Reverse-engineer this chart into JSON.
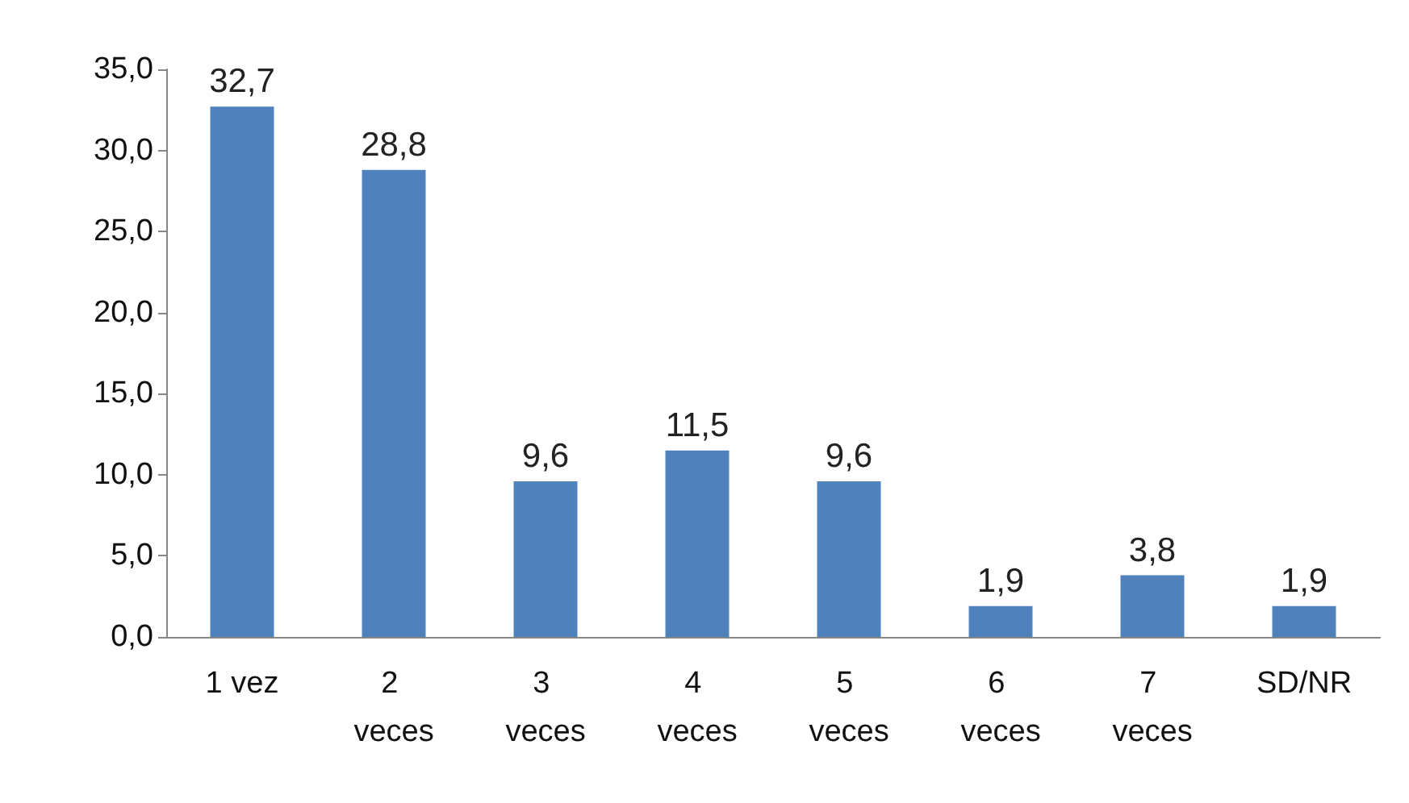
{
  "chart_data": {
    "type": "bar",
    "categories": [
      "1 vez",
      "2 veces",
      "3 veces",
      "4 veces",
      "5 veces",
      "6 veces",
      "7 veces",
      "SD/NR"
    ],
    "values": [
      32.7,
      28.8,
      9.6,
      11.5,
      9.6,
      1.9,
      3.8,
      1.9
    ],
    "value_labels": [
      "32,7",
      "28,8",
      "9,6",
      "11,5",
      "9,6",
      "1,9",
      "3,8",
      "1,9"
    ],
    "color": "#4f81bd",
    "ylim": [
      0,
      35
    ],
    "yticks": [
      {
        "value": 0,
        "label": "0,0"
      },
      {
        "value": 5,
        "label": "5,0"
      },
      {
        "value": 10,
        "label": "10,0"
      },
      {
        "value": 15,
        "label": "15,0"
      },
      {
        "value": 20,
        "label": "20,0"
      },
      {
        "value": 25,
        "label": "25,0"
      },
      {
        "value": 30,
        "label": "30,0"
      },
      {
        "value": 35,
        "label": "35,0"
      }
    ],
    "grid": false
  }
}
